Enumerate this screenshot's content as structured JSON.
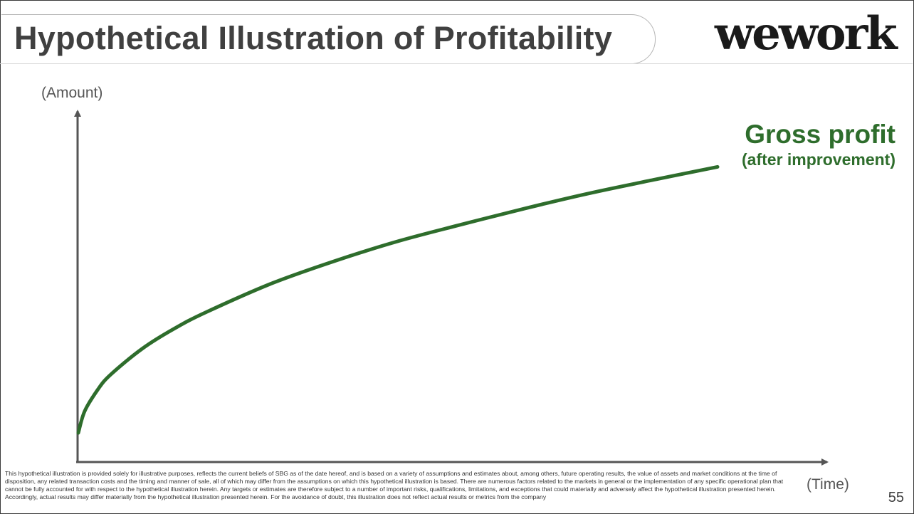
{
  "slide": {
    "title": "Hypothetical Illustration of Profitability",
    "logo_text": "wework",
    "page_number": "55",
    "footnote": "This hypothetical illustration is provided solely for illustrative purposes, reflects the current beliefs of SBG as of the date hereof, and is based on a variety of assumptions and estimates about, among others, future operating results, the value of assets and market conditions at the time of disposition, any related transaction costs and the timing and manner of sale, all of which may differ from the assumptions on which this hypothetical illustration is based. There are numerous factors related to the markets in general or the implementation of any specific operational plan that cannot be fully accounted for with respect to the hypothetical illustration herein. Any targets or estimates are therefore subject to a number of important risks, qualifications, limitations, and exceptions that could materially and adversely affect the hypothetical illustration presented herein. Accordingly, actual results may differ materially from the hypothetical illustration presented herein. For the avoidance of doubt, this illustration does not reflect  actual results or metrics from the company"
  },
  "colors": {
    "title_text": "#404040",
    "series_green": "#2e6d2c",
    "axis": "#555555",
    "logo": "#1a1a1a"
  },
  "chart_data": {
    "type": "line",
    "title": "",
    "xlabel": "(Time)",
    "ylabel": "(Amount)",
    "xlim": [
      0,
      100
    ],
    "ylim": [
      0,
      100
    ],
    "grid": false,
    "axis_ticks": false,
    "series": [
      {
        "name": "Gross profit",
        "name_sub": "(after improvement)",
        "label_position": "end-right",
        "x": [
          0,
          1,
          3,
          5,
          10,
          15,
          20,
          30,
          40,
          50,
          60,
          70,
          80,
          90,
          100
        ],
        "values": [
          8.3,
          14.5,
          20.5,
          24.8,
          32.3,
          38.0,
          42.7,
          50.7,
          57.2,
          62.9,
          67.7,
          72.3,
          76.6,
          80.4,
          84.1
        ]
      }
    ]
  }
}
